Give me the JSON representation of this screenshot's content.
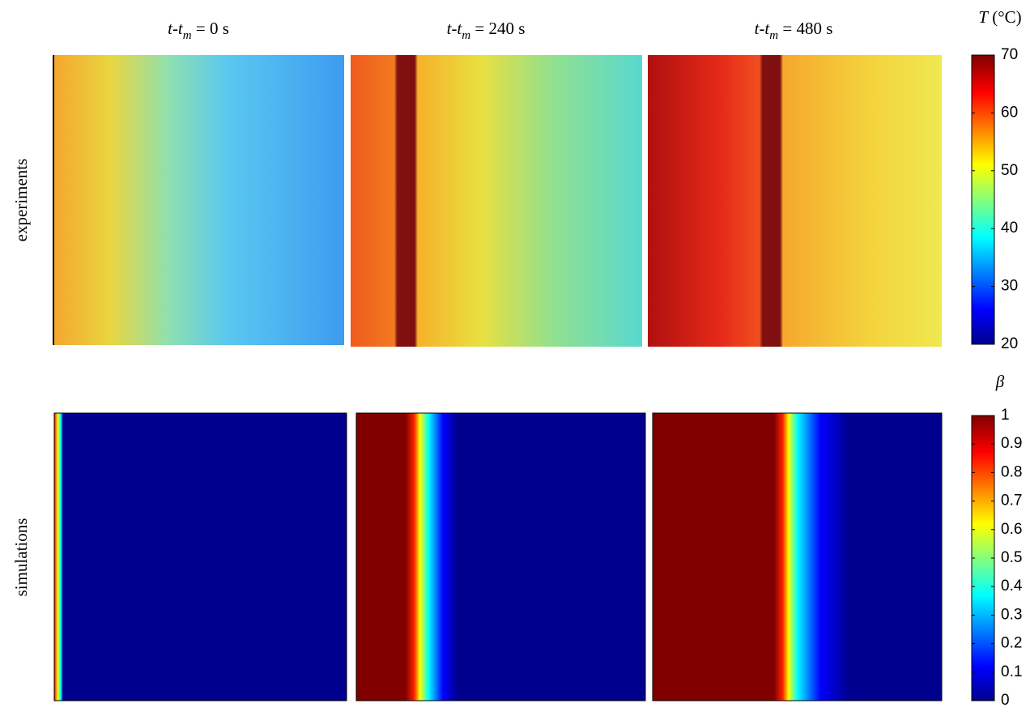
{
  "columns": [
    {
      "variable": "t-t",
      "subscript": "m",
      "rest": " = 0 s"
    },
    {
      "variable": "t-t",
      "subscript": "m",
      "rest": " = 240 s"
    },
    {
      "variable": "t-t",
      "subscript": "m",
      "rest": " = 480 s"
    }
  ],
  "rows": [
    "experiments",
    "simulations"
  ],
  "colorbars": [
    {
      "symbol": "T",
      "unit": " (°C)",
      "lim": [
        20,
        70
      ],
      "ticks": [
        20,
        30,
        40,
        50,
        60,
        70
      ]
    },
    {
      "symbol": "β",
      "lim": [
        0,
        1
      ],
      "ticks": [
        0,
        0.1,
        0.2,
        0.3,
        0.4,
        0.5,
        0.6,
        0.7,
        0.8,
        0.9,
        1
      ]
    }
  ]
}
